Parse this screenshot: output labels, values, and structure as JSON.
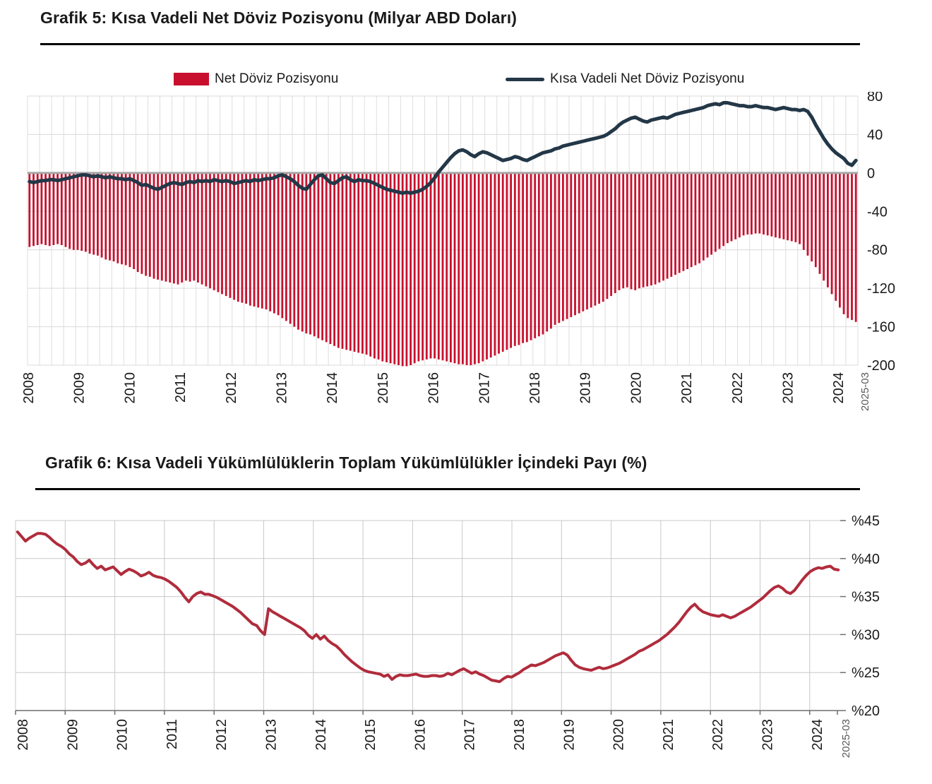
{
  "chart_data": [
    {
      "type": "bar+line",
      "title": "Grafik 5: Kısa Vadeli Net Döviz Pozisyonu (Milyar ABD Doları)",
      "x": {
        "start": "2008-01",
        "end": "2025-03",
        "year_labels": [
          "2008",
          "2009",
          "2010",
          "2011",
          "2012",
          "2013",
          "2014",
          "2015",
          "2016",
          "2017",
          "2018",
          "2019",
          "2020",
          "2021",
          "2022",
          "2023",
          "2024"
        ],
        "end_label": "2025-03"
      },
      "y": {
        "lim": [
          -200,
          80
        ],
        "ticks": [
          80,
          40,
          0,
          -40,
          -80,
          -120,
          -160,
          -200
        ]
      },
      "grid": {
        "vertical": "quarterly",
        "horizontal_step": 40,
        "zero_line_color": "#a6a6a6"
      },
      "legend_position": "top",
      "series": [
        {
          "name": "Net Döviz Pozisyonu",
          "type": "bar",
          "color": "#C8102E",
          "values": [
            -77,
            -76,
            -75,
            -74,
            -75,
            -76,
            -75,
            -74,
            -75,
            -77,
            -79,
            -80,
            -80,
            -81,
            -82,
            -84,
            -85,
            -86,
            -88,
            -90,
            -91,
            -92,
            -94,
            -95,
            -96,
            -98,
            -100,
            -103,
            -105,
            -107,
            -108,
            -110,
            -111,
            -112,
            -113,
            -114,
            -115,
            -116,
            -114,
            -112,
            -113,
            -112,
            -114,
            -116,
            -118,
            -120,
            -122,
            -124,
            -126,
            -128,
            -130,
            -132,
            -134,
            -135,
            -136,
            -138,
            -139,
            -140,
            -141,
            -142,
            -144,
            -146,
            -148,
            -151,
            -154,
            -157,
            -160,
            -163,
            -165,
            -167,
            -168,
            -170,
            -172,
            -174,
            -176,
            -178,
            -180,
            -182,
            -183,
            -184,
            -185,
            -186,
            -187,
            -188,
            -189,
            -191,
            -193,
            -194,
            -196,
            -197,
            -198,
            -199,
            -200,
            -201,
            -201,
            -200,
            -198,
            -196,
            -195,
            -194,
            -193,
            -193,
            -194,
            -195,
            -196,
            -197,
            -198,
            -199,
            -199,
            -200,
            -200,
            -199,
            -198,
            -196,
            -194,
            -192,
            -190,
            -188,
            -186,
            -184,
            -182,
            -180,
            -179,
            -177,
            -176,
            -174,
            -172,
            -170,
            -168,
            -165,
            -162,
            -158,
            -156,
            -154,
            -152,
            -150,
            -148,
            -146,
            -144,
            -142,
            -140,
            -138,
            -136,
            -134,
            -131,
            -128,
            -125,
            -122,
            -120,
            -119,
            -121,
            -122,
            -120,
            -119,
            -118,
            -117,
            -116,
            -114,
            -112,
            -110,
            -108,
            -106,
            -104,
            -102,
            -100,
            -98,
            -96,
            -94,
            -91,
            -88,
            -85,
            -82,
            -79,
            -76,
            -73,
            -71,
            -69,
            -67,
            -65,
            -64,
            -64,
            -63,
            -63,
            -64,
            -65,
            -66,
            -67,
            -68,
            -69,
            -70,
            -71,
            -72,
            -74,
            -80,
            -86,
            -92,
            -98,
            -105,
            -112,
            -119,
            -126,
            -133,
            -140,
            -147,
            -151,
            -153,
            -155
          ]
        },
        {
          "name": "Kısa Vadeli Net Döviz Pozisyonu",
          "type": "line",
          "color": "#233747",
          "values": [
            -9,
            -10,
            -9,
            -8,
            -8,
            -7,
            -7,
            -8,
            -7,
            -6,
            -5,
            -4,
            -3,
            -2,
            -2,
            -3,
            -4,
            -3,
            -4,
            -5,
            -4,
            -5,
            -6,
            -6,
            -7,
            -6,
            -8,
            -10,
            -13,
            -12,
            -14,
            -16,
            -17,
            -15,
            -13,
            -11,
            -10,
            -11,
            -12,
            -10,
            -9,
            -10,
            -8,
            -9,
            -8,
            -9,
            -7,
            -8,
            -9,
            -8,
            -9,
            -11,
            -10,
            -9,
            -8,
            -9,
            -7,
            -8,
            -7,
            -6,
            -6,
            -5,
            -3,
            -2,
            -4,
            -6,
            -9,
            -13,
            -16,
            -17,
            -12,
            -7,
            -3,
            -2,
            -6,
            -10,
            -11,
            -8,
            -5,
            -4,
            -7,
            -9,
            -7,
            -8,
            -8,
            -9,
            -11,
            -13,
            -15,
            -17,
            -18,
            -19,
            -20,
            -21,
            -20,
            -21,
            -20,
            -19,
            -17,
            -14,
            -10,
            -5,
            1,
            6,
            11,
            16,
            20,
            23,
            24,
            22,
            19,
            17,
            20,
            22,
            21,
            19,
            17,
            15,
            13,
            14,
            15,
            17,
            16,
            14,
            13,
            15,
            17,
            19,
            21,
            22,
            23,
            25,
            26,
            28,
            29,
            30,
            31,
            32,
            33,
            34,
            35,
            36,
            37,
            38,
            40,
            43,
            46,
            50,
            53,
            55,
            57,
            58,
            56,
            54,
            53,
            55,
            56,
            57,
            58,
            57,
            59,
            61,
            62,
            63,
            64,
            65,
            66,
            67,
            68,
            70,
            71,
            72,
            71,
            73,
            73,
            72,
            71,
            70,
            70,
            69,
            69,
            70,
            69,
            68,
            68,
            67,
            66,
            67,
            68,
            67,
            66,
            66,
            65,
            66,
            64,
            58,
            50,
            43,
            36,
            30,
            25,
            21,
            18,
            15,
            10,
            8,
            13
          ]
        }
      ]
    },
    {
      "type": "line",
      "title": "Grafik 6: Kısa Vadeli Yükümlülüklerin Toplam Yükümlülükler İçindeki Payı (%)",
      "x": {
        "start": "2008-01",
        "end": "2025-03",
        "year_labels": [
          "2008",
          "2009",
          "2010",
          "2011",
          "2012",
          "2013",
          "2014",
          "2015",
          "2016",
          "2017",
          "2018",
          "2019",
          "2020",
          "2021",
          "2022",
          "2023",
          "2024"
        ],
        "end_label": "2025-03"
      },
      "y": {
        "lim": [
          20,
          45
        ],
        "ticks": [
          45,
          40,
          35,
          30,
          25,
          20
        ],
        "tick_prefix": "%"
      },
      "grid": {
        "vertical": "yearly",
        "horizontal_step": 5
      },
      "series": [
        {
          "type": "line",
          "color": "#B02C3C",
          "values": [
            43.5,
            42.9,
            42.3,
            42.7,
            43.0,
            43.3,
            43.3,
            43.2,
            42.8,
            42.3,
            41.9,
            41.6,
            41.2,
            40.6,
            40.2,
            39.6,
            39.2,
            39.4,
            39.8,
            39.2,
            38.7,
            39.0,
            38.5,
            38.7,
            38.9,
            38.4,
            37.9,
            38.3,
            38.6,
            38.4,
            38.1,
            37.7,
            37.9,
            38.2,
            37.8,
            37.6,
            37.5,
            37.3,
            37.0,
            36.6,
            36.2,
            35.6,
            34.9,
            34.3,
            35.0,
            35.4,
            35.6,
            35.3,
            35.3,
            35.1,
            34.9,
            34.6,
            34.3,
            34.0,
            33.7,
            33.3,
            32.9,
            32.4,
            31.9,
            31.4,
            31.2,
            30.5,
            30.0,
            33.4,
            33.0,
            32.7,
            32.4,
            32.1,
            31.8,
            31.5,
            31.2,
            30.9,
            30.5,
            29.9,
            29.5,
            30.0,
            29.4,
            29.8,
            29.2,
            28.8,
            28.5,
            28.0,
            27.4,
            26.9,
            26.4,
            26.0,
            25.6,
            25.3,
            25.1,
            25.0,
            24.9,
            24.8,
            24.5,
            24.7,
            24.1,
            24.5,
            24.7,
            24.6,
            24.6,
            24.7,
            24.8,
            24.6,
            24.5,
            24.5,
            24.6,
            24.6,
            24.5,
            24.6,
            24.9,
            24.7,
            25.0,
            25.3,
            25.5,
            25.2,
            24.9,
            25.1,
            24.8,
            24.6,
            24.3,
            24.0,
            23.9,
            23.8,
            24.2,
            24.5,
            24.4,
            24.7,
            25.0,
            25.4,
            25.7,
            26.0,
            25.9,
            26.1,
            26.3,
            26.6,
            26.9,
            27.2,
            27.4,
            27.6,
            27.3,
            26.6,
            26.0,
            25.7,
            25.5,
            25.4,
            25.3,
            25.5,
            25.7,
            25.5,
            25.6,
            25.8,
            26.0,
            26.2,
            26.5,
            26.8,
            27.1,
            27.4,
            27.8,
            28.0,
            28.3,
            28.6,
            28.9,
            29.2,
            29.6,
            30.0,
            30.5,
            31.0,
            31.6,
            32.3,
            33.0,
            33.6,
            34.0,
            33.4,
            33.0,
            32.8,
            32.6,
            32.5,
            32.4,
            32.6,
            32.4,
            32.2,
            32.4,
            32.7,
            33.0,
            33.3,
            33.6,
            34.0,
            34.4,
            34.8,
            35.3,
            35.8,
            36.2,
            36.4,
            36.1,
            35.6,
            35.4,
            35.8,
            36.5,
            37.2,
            37.8,
            38.3,
            38.6,
            38.8,
            38.7,
            38.9,
            39.0,
            38.6,
            38.5
          ]
        }
      ]
    }
  ]
}
